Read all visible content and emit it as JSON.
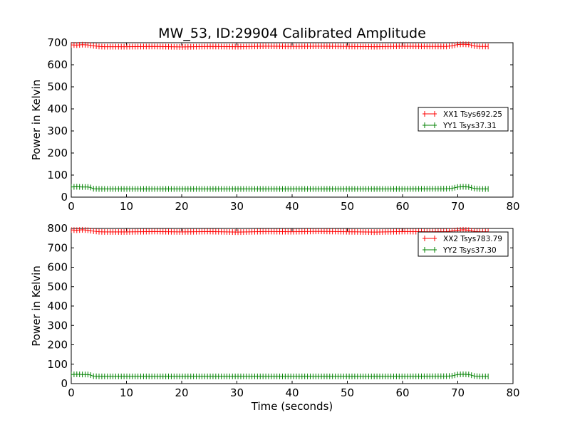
{
  "chart_data": {
    "type": "line",
    "title": "MW_53, ID:29904 Calibrated Amplitude",
    "xlabel": "Time (seconds)",
    "grid": false,
    "x_range": [
      0,
      75.5
    ],
    "marker": "+",
    "panels": [
      {
        "ylabel": "Power in Kelvin",
        "xlim": [
          0,
          80
        ],
        "ylim": [
          0,
          700
        ],
        "xticks": [
          0,
          10,
          20,
          30,
          40,
          50,
          60,
          70,
          80
        ],
        "yticks": [
          0,
          100,
          200,
          300,
          400,
          500,
          600,
          700
        ],
        "legend_location": "center-right",
        "series": [
          {
            "name": "XX1 Tsys692.25",
            "color": "#ff0000",
            "x": [
              0,
              1,
              2,
              3,
              4,
              5,
              6,
              10,
              15,
              20,
              25,
              30,
              35,
              40,
              45,
              50,
              55,
              60,
              65,
              68,
              69,
              70,
              71,
              72,
              73,
              74,
              75.5
            ],
            "y": [
              690,
              689,
              691,
              690,
              686,
              683,
              682,
              682,
              683,
              681,
              683,
              682,
              684,
              683,
              684,
              683,
              682,
              684,
              683,
              683,
              686,
              692,
              693,
              692,
              685,
              683,
              683
            ]
          },
          {
            "name": "YY1 Tsys37.31",
            "color": "#008000",
            "x": [
              0,
              1,
              2,
              3,
              3.5,
              4,
              5,
              10,
              20,
              30,
              40,
              50,
              60,
              68,
              69,
              70,
              71,
              72,
              73,
              74,
              75.5
            ],
            "y": [
              46,
              47,
              46,
              46,
              44,
              38,
              37,
              37,
              37,
              37,
              37,
              37,
              37,
              38,
              40,
              46,
              47,
              46,
              39,
              37,
              37
            ]
          }
        ]
      },
      {
        "ylabel": "Power in Kelvin",
        "xlim": [
          0,
          80
        ],
        "ylim": [
          0,
          800
        ],
        "xticks": [
          0,
          10,
          20,
          30,
          40,
          50,
          60,
          70,
          80
        ],
        "yticks": [
          0,
          100,
          200,
          300,
          400,
          500,
          600,
          700,
          800
        ],
        "legend_location": "top-right",
        "series": [
          {
            "name": "XX2 Tsys783.79",
            "color": "#ff0000",
            "x": [
              0,
              1,
              2,
              3,
              4,
              5,
              6,
              10,
              15,
              20,
              25,
              30,
              35,
              40,
              45,
              50,
              55,
              60,
              65,
              68,
              69,
              70,
              71,
              72,
              73,
              74,
              75.5
            ],
            "y": [
              792,
              791,
              793,
              791,
              786,
              783,
              782,
              782,
              784,
              782,
              784,
              781,
              784,
              783,
              785,
              783,
              781,
              784,
              783,
              784,
              787,
              791,
              793,
              791,
              785,
              783,
              783
            ]
          },
          {
            "name": "YY2 Tsys37.30",
            "color": "#008000",
            "x": [
              0,
              1,
              2,
              3,
              3.5,
              4,
              5,
              10,
              20,
              30,
              40,
              50,
              60,
              68,
              69,
              70,
              71,
              72,
              73,
              74,
              75.5
            ],
            "y": [
              47,
              48,
              47,
              47,
              44,
              38,
              37,
              37,
              37,
              37,
              37,
              37,
              37,
              38,
              40,
              47,
              48,
              47,
              39,
              37,
              37
            ]
          }
        ]
      }
    ]
  }
}
